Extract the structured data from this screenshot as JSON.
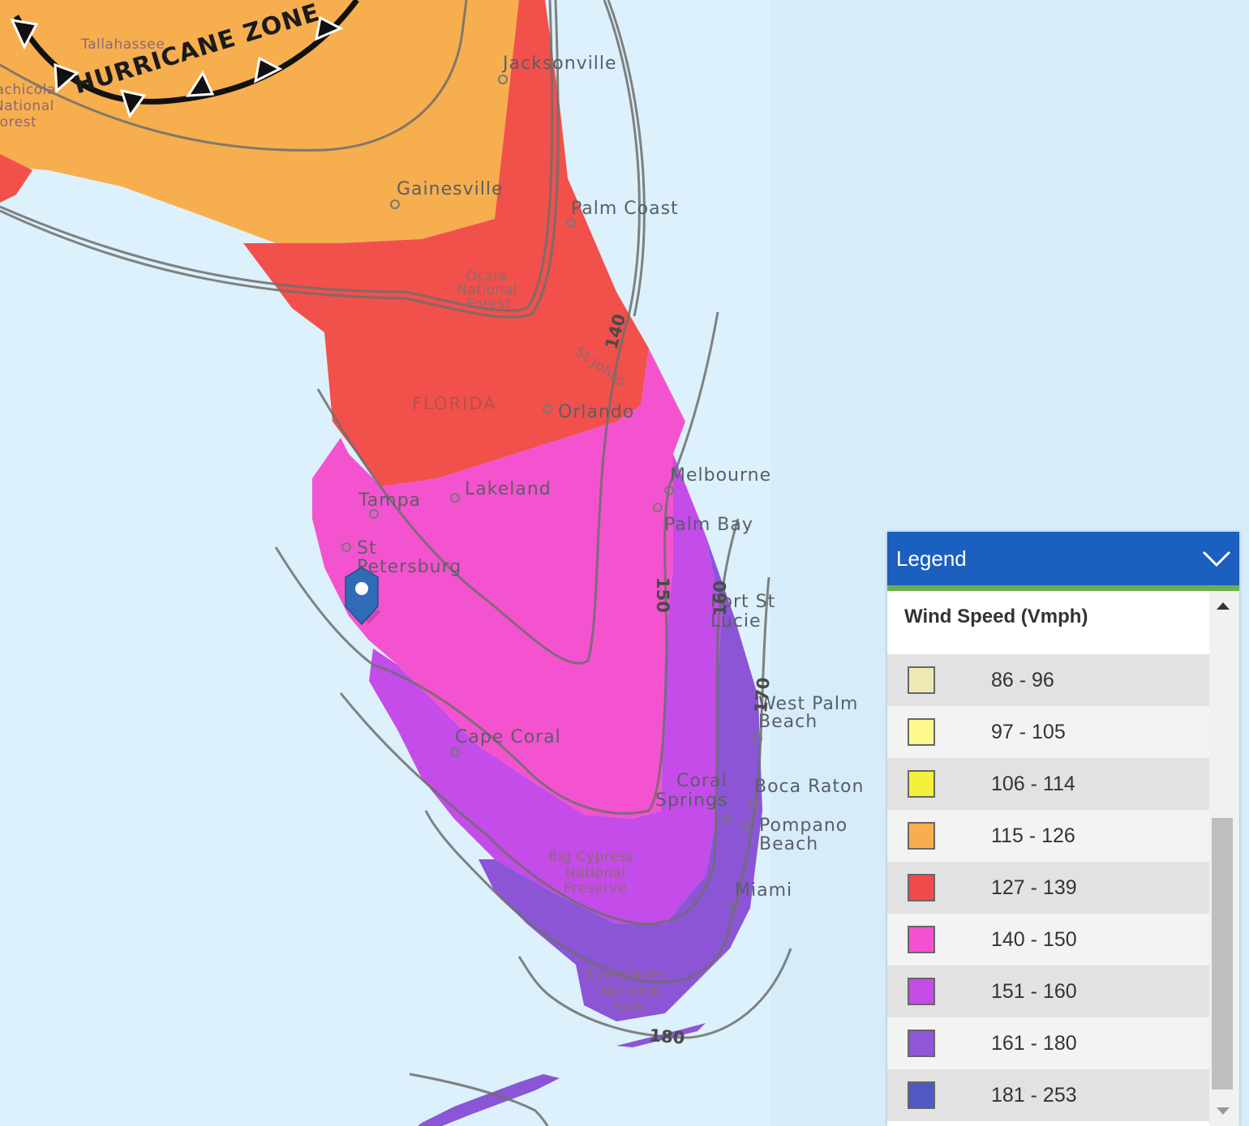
{
  "map": {
    "hurricane_zone_label": "HURRICANE ZONE",
    "state_label": "FLORIDA",
    "cities": [
      {
        "id": "jacksonville",
        "label": "Jacksonville"
      },
      {
        "id": "gainesville",
        "label": "Gainesville"
      },
      {
        "id": "palm-coast",
        "label": "Palm Coast"
      },
      {
        "id": "orlando",
        "label": "Orlando"
      },
      {
        "id": "melbourne",
        "label": "Melbourne"
      },
      {
        "id": "palm-bay",
        "label": "Palm Bay"
      },
      {
        "id": "lakeland",
        "label": "Lakeland"
      },
      {
        "id": "tampa",
        "label": "Tampa"
      },
      {
        "id": "st-petersburg-1",
        "label": "St"
      },
      {
        "id": "st-petersburg-2",
        "label": "Petersburg"
      },
      {
        "id": "port-st-lucie-1",
        "label": "Port St"
      },
      {
        "id": "port-st-lucie-2",
        "label": "Lucie"
      },
      {
        "id": "west-palm-1",
        "label": "West Palm"
      },
      {
        "id": "west-palm-2",
        "label": "Beach"
      },
      {
        "id": "cape-coral",
        "label": "Cape Coral"
      },
      {
        "id": "coral-springs-1",
        "label": "Coral"
      },
      {
        "id": "coral-springs-2",
        "label": "Springs"
      },
      {
        "id": "boca-raton",
        "label": "Boca Raton"
      },
      {
        "id": "pompano-1",
        "label": "Pompano"
      },
      {
        "id": "pompano-2",
        "label": "Beach"
      },
      {
        "id": "miami",
        "label": "Miami"
      }
    ],
    "areas": [
      {
        "id": "ocala-1",
        "label": "Ocala"
      },
      {
        "id": "ocala-2",
        "label": "National"
      },
      {
        "id": "ocala-3",
        "label": "Forest"
      },
      {
        "id": "big-cypress-1",
        "label": "Big Cypress"
      },
      {
        "id": "big-cypress-2",
        "label": "National"
      },
      {
        "id": "big-cypress-3",
        "label": "Preserve"
      },
      {
        "id": "everglades-1",
        "label": "Everglades"
      },
      {
        "id": "everglades-2",
        "label": "National"
      },
      {
        "id": "everglades-3",
        "label": "Park"
      },
      {
        "id": "apalachicola-1",
        "label": "Apalachicola"
      },
      {
        "id": "apalachicola-2",
        "label": "National"
      },
      {
        "id": "apalachicola-3",
        "label": "Forest"
      },
      {
        "id": "tallahassee",
        "label": "Tallahassee"
      },
      {
        "id": "st-johns",
        "label": "St Johns"
      }
    ],
    "contours": {
      "c140": "140",
      "c150": "150",
      "c160": "160",
      "c170": "170",
      "c180": "180"
    }
  },
  "legend": {
    "title": "Legend",
    "subtitle": "Wind Speed (Vmph)",
    "items": [
      {
        "range": "86 - 96",
        "color": "#efe8b2"
      },
      {
        "range": "97 - 105",
        "color": "#fdf98d"
      },
      {
        "range": "106 - 114",
        "color": "#f4f03c"
      },
      {
        "range": "115 - 126",
        "color": "#f9ad4e"
      },
      {
        "range": "127 - 139",
        "color": "#f04a4a"
      },
      {
        "range": "140 - 150",
        "color": "#f251cf"
      },
      {
        "range": "151 - 160",
        "color": "#c44de6"
      },
      {
        "range": "161 - 180",
        "color": "#9155d8"
      },
      {
        "range": "181 - 253",
        "color": "#5159c4"
      }
    ]
  },
  "colors": {
    "ocean": "#dcf1fb",
    "zone_orange": "#f6ae4f",
    "zone_red": "#f2504b",
    "zone_pink": "#f453cf",
    "zone_purple": "#c44ce8",
    "zone_violet": "#8b55d6",
    "marker": "#2f6cb5"
  }
}
